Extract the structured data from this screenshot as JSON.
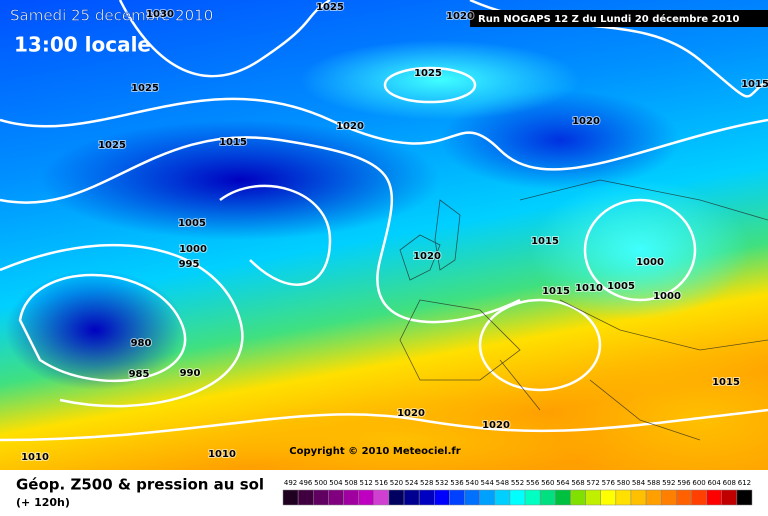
{
  "header": {
    "date": "Samedi 25 decembre 2010",
    "time": "13:00 locale",
    "run": "Run NOGAPS 12 Z du Lundi 20 décembre 2010"
  },
  "isobar_labels": [
    1030,
    1025,
    1020,
    1025,
    1025,
    1015,
    1025,
    1015,
    1020,
    1020,
    1005,
    1000,
    995,
    1020,
    1015,
    1000,
    1015,
    1010,
    1005,
    1000,
    980,
    985,
    990,
    1015,
    1020,
    1020,
    1010,
    1010
  ],
  "copyright": "Copyright © 2010 Meteociel.fr",
  "legend": {
    "title": "Géop. Z500 & pression au sol",
    "lead": "(+ 120h)",
    "values": [
      492,
      496,
      500,
      504,
      508,
      512,
      516,
      520,
      524,
      528,
      532,
      536,
      540,
      544,
      548,
      552,
      556,
      560,
      564,
      568,
      572,
      576,
      580,
      584,
      588,
      592,
      596,
      600,
      604,
      608,
      612
    ],
    "colors": [
      "#200020",
      "#400040",
      "#600060",
      "#800080",
      "#a000a0",
      "#c000c0",
      "#d040d0",
      "#000060",
      "#000090",
      "#0000c0",
      "#0000ff",
      "#0040ff",
      "#0070ff",
      "#00a0ff",
      "#00d0ff",
      "#00ffff",
      "#00ffc0",
      "#00e080",
      "#00c040",
      "#80e000",
      "#c0f000",
      "#ffff00",
      "#ffe000",
      "#ffc000",
      "#ffa000",
      "#ff8000",
      "#ff6000",
      "#ff4000",
      "#ff0000",
      "#c00000",
      "#000000"
    ]
  }
}
